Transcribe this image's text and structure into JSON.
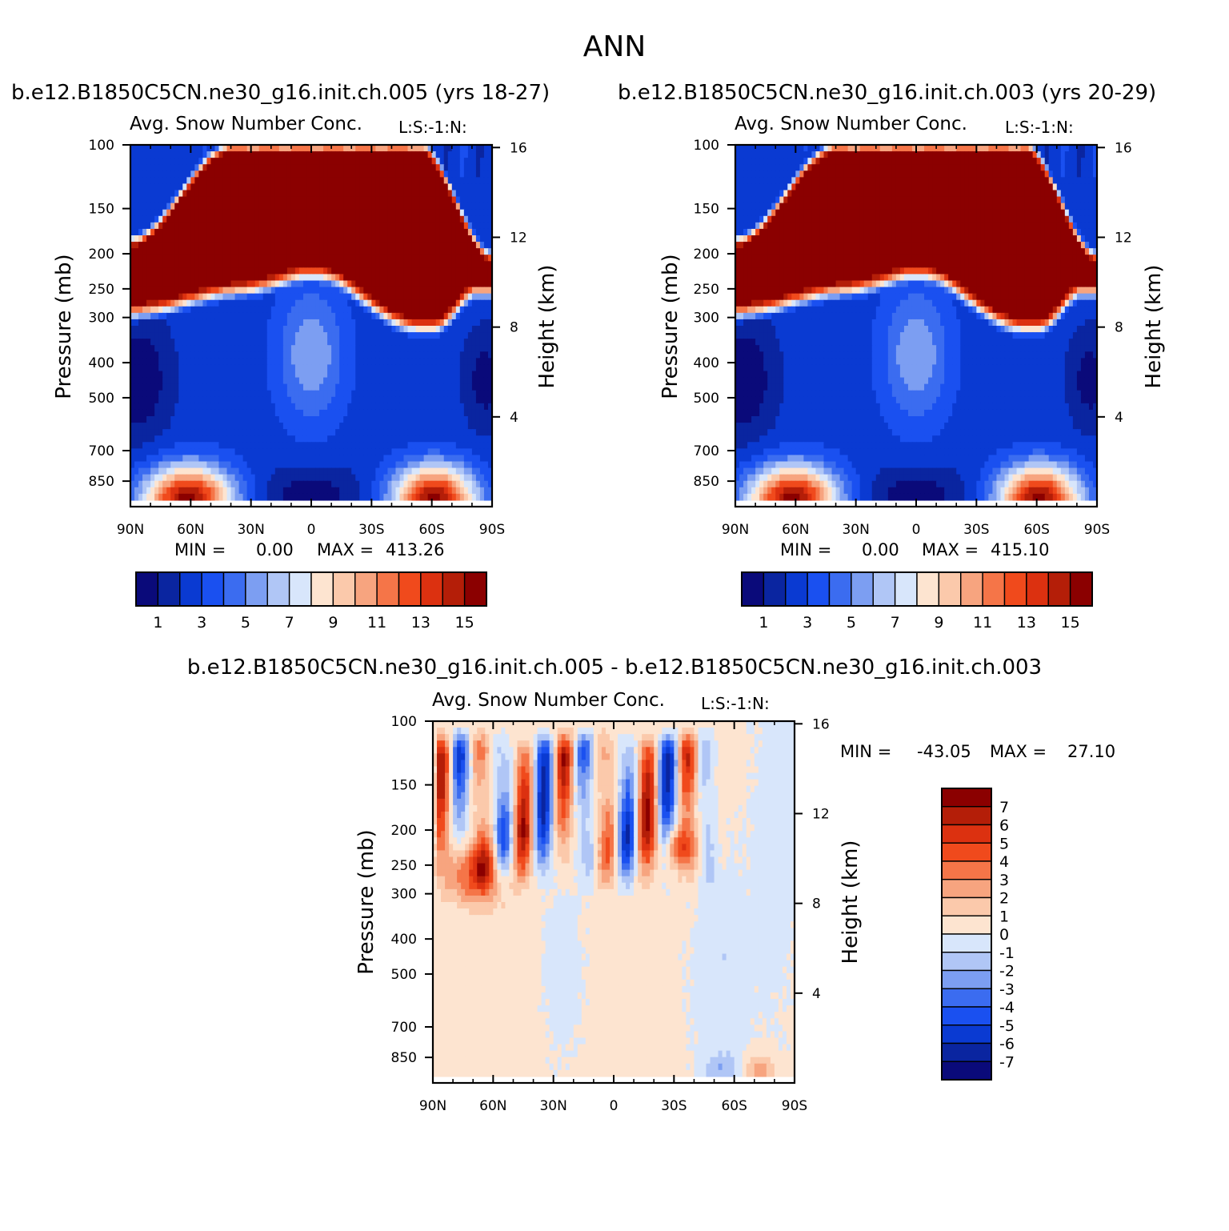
{
  "figure": {
    "title": "ANN"
  },
  "panels": [
    {
      "id": "left",
      "case_title": "b.e12.B1850C5CN.ne30_g16.init.ch.005 (yrs 18-27)",
      "field_label": "Avg. Snow Number Conc.",
      "units_label": "L:S:-1:N:",
      "ylabel": "Pressure (mb)",
      "right_ylabel": "Height (km)",
      "stats": {
        "min_label": "MIN =",
        "min": "0.00",
        "max_label": "MAX =",
        "max": "413.26"
      }
    },
    {
      "id": "right",
      "case_title": "b.e12.B1850C5CN.ne30_g16.init.ch.003 (yrs 20-29)",
      "field_label": "Avg. Snow Number Conc.",
      "units_label": "L:S:-1:N:",
      "ylabel": "Pressure (mb)",
      "right_ylabel": "Height (km)",
      "stats": {
        "min_label": "MIN =",
        "min": "0.00",
        "max_label": "MAX =",
        "max": "415.10"
      }
    },
    {
      "id": "diff",
      "case_title": "b.e12.B1850C5CN.ne30_g16.init.ch.005 - b.e12.B1850C5CN.ne30_g16.init.ch.003",
      "field_label": "Avg. Snow Number Conc.",
      "units_label": "L:S:-1:N:",
      "ylabel": "Pressure (mb)",
      "right_ylabel": "Height (km)",
      "stats": {
        "min_label": "MIN =",
        "min": "-43.05",
        "max_label": "MAX =",
        "max": "27.10"
      }
    }
  ],
  "colors": {
    "seq": [
      "#0a0a7a",
      "#0a25a0",
      "#0a3ad2",
      "#1a50f0",
      "#3b6cf0",
      "#7c9ef2",
      "#b0c6f6",
      "#d8e6fb",
      "#fde4d0",
      "#fbc9ab",
      "#f7a47f",
      "#f57548",
      "#f04a1c",
      "#dc3110",
      "#b41e08",
      "#8b0000"
    ],
    "diff": [
      "#0a0a7a",
      "#0a25a0",
      "#0a3ad2",
      "#1a50f0",
      "#3b6cf0",
      "#7c9ef2",
      "#b0c6f6",
      "#d8e6fb",
      "#fde4d0",
      "#fbc9ab",
      "#f7a47f",
      "#f57548",
      "#f04a1c",
      "#dc3110",
      "#b41e08",
      "#8b0000"
    ]
  },
  "chart_data": [
    {
      "panel": "left",
      "type": "heatmap",
      "title": "Avg. Snow Number Conc.",
      "xlabel": "",
      "ylabel": "Pressure (mb)",
      "right_ylabel": "Height (km)",
      "x_ticks": [
        "90N",
        "60N",
        "30N",
        "0",
        "30S",
        "60S",
        "90S"
      ],
      "x_values": [
        90,
        60,
        30,
        0,
        -30,
        -60,
        -90
      ],
      "y_ticks": [
        "100",
        "150",
        "200",
        "250",
        "300",
        "400",
        "500",
        "700",
        "850"
      ],
      "y_values": [
        100,
        150,
        200,
        250,
        300,
        400,
        500,
        700,
        850
      ],
      "y_scale": "log",
      "ylim": [
        100,
        1000
      ],
      "right_ticks": [
        "16",
        "12",
        "8",
        "4"
      ],
      "right_values": [
        16,
        12,
        8,
        4
      ],
      "colorbar_labels": [
        "1",
        "3",
        "5",
        "7",
        "9",
        "11",
        "13",
        "15"
      ],
      "colorbar_orientation": "horizontal",
      "min": 0.0,
      "max": 413.26
    },
    {
      "panel": "right",
      "type": "heatmap",
      "title": "Avg. Snow Number Conc.",
      "xlabel": "",
      "ylabel": "Pressure (mb)",
      "right_ylabel": "Height (km)",
      "x_ticks": [
        "90N",
        "60N",
        "30N",
        "0",
        "30S",
        "60S",
        "90S"
      ],
      "x_values": [
        90,
        60,
        30,
        0,
        -30,
        -60,
        -90
      ],
      "y_ticks": [
        "100",
        "150",
        "200",
        "250",
        "300",
        "400",
        "500",
        "700",
        "850"
      ],
      "y_values": [
        100,
        150,
        200,
        250,
        300,
        400,
        500,
        700,
        850
      ],
      "y_scale": "log",
      "ylim": [
        100,
        1000
      ],
      "right_ticks": [
        "16",
        "12",
        "8",
        "4"
      ],
      "right_values": [
        16,
        12,
        8,
        4
      ],
      "colorbar_labels": [
        "1",
        "3",
        "5",
        "7",
        "9",
        "11",
        "13",
        "15"
      ],
      "colorbar_orientation": "horizontal",
      "min": 0.0,
      "max": 415.1
    },
    {
      "panel": "diff",
      "type": "heatmap",
      "title": "Avg. Snow Number Conc.",
      "xlabel": "",
      "ylabel": "Pressure (mb)",
      "right_ylabel": "Height (km)",
      "x_ticks": [
        "90N",
        "60N",
        "30N",
        "0",
        "30S",
        "60S",
        "90S"
      ],
      "x_values": [
        90,
        60,
        30,
        0,
        -30,
        -60,
        -90
      ],
      "y_ticks": [
        "100",
        "150",
        "200",
        "250",
        "300",
        "400",
        "500",
        "700",
        "850"
      ],
      "y_values": [
        100,
        150,
        200,
        250,
        300,
        400,
        500,
        700,
        850
      ],
      "y_scale": "log",
      "ylim": [
        100,
        1000
      ],
      "right_ticks": [
        "16",
        "12",
        "8",
        "4"
      ],
      "right_values": [
        16,
        12,
        8,
        4
      ],
      "colorbar_labels": [
        "7",
        "6",
        "5",
        "4",
        "3",
        "2",
        "1",
        "0",
        "-1",
        "-2",
        "-3",
        "-4",
        "-5",
        "-6",
        "-7"
      ],
      "colorbar_orientation": "vertical",
      "min": -43.05,
      "max": 27.1
    }
  ]
}
